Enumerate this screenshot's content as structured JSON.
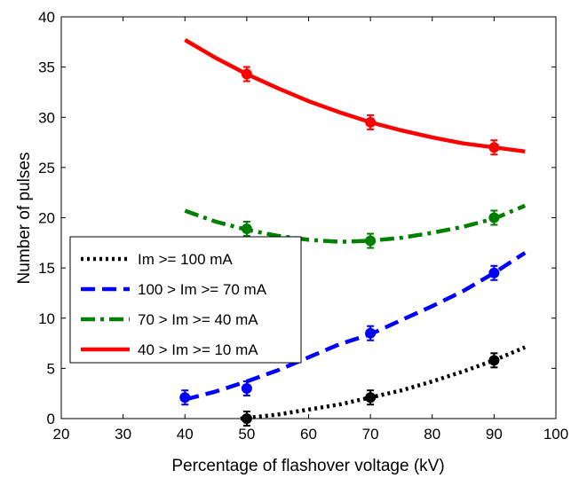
{
  "chart_data": {
    "type": "line",
    "title": "",
    "xlabel": "Percentage of flashover voltage (kV)",
    "ylabel": "Number of pulses",
    "xlim": [
      20,
      100
    ],
    "ylim": [
      0,
      40
    ],
    "xticks": [
      20,
      30,
      40,
      50,
      60,
      70,
      80,
      90,
      100
    ],
    "yticks": [
      0,
      5,
      10,
      15,
      20,
      25,
      30,
      35,
      40
    ],
    "grid": false,
    "legend_position": "center-left",
    "series": [
      {
        "name": "Im >= 100 mA",
        "color": "#000000",
        "line_style": "dotted",
        "points": [
          {
            "x": 50,
            "y": 0.0
          },
          {
            "x": 70,
            "y": 2.1
          },
          {
            "x": 90,
            "y": 5.8
          }
        ],
        "fit": [
          [
            49,
            0.0
          ],
          [
            55,
            0.4
          ],
          [
            60,
            0.9
          ],
          [
            65,
            1.4
          ],
          [
            70,
            2.1
          ],
          [
            75,
            2.8
          ],
          [
            80,
            3.7
          ],
          [
            85,
            4.7
          ],
          [
            90,
            5.8
          ],
          [
            95,
            7.1
          ]
        ]
      },
      {
        "name": "100 > Im >= 70 mA",
        "color": "#0000ff",
        "line_style": "dashed",
        "points": [
          {
            "x": 40,
            "y": 2.1
          },
          {
            "x": 50,
            "y": 3.0
          },
          {
            "x": 70,
            "y": 8.5
          },
          {
            "x": 90,
            "y": 14.5
          }
        ],
        "fit": [
          [
            40,
            1.9
          ],
          [
            45,
            2.7
          ],
          [
            50,
            3.7
          ],
          [
            55,
            4.8
          ],
          [
            60,
            6.1
          ],
          [
            65,
            7.4
          ],
          [
            70,
            8.4
          ],
          [
            75,
            9.8
          ],
          [
            80,
            11.2
          ],
          [
            85,
            12.7
          ],
          [
            90,
            14.5
          ],
          [
            95,
            16.5
          ]
        ]
      },
      {
        "name": "70 > Im >= 40 mA",
        "color": "#007f00",
        "line_style": "dashdot",
        "points": [
          {
            "x": 50,
            "y": 18.9
          },
          {
            "x": 70,
            "y": 17.7
          },
          {
            "x": 90,
            "y": 20.0
          }
        ],
        "fit": [
          [
            40,
            20.7
          ],
          [
            45,
            19.6
          ],
          [
            50,
            18.8
          ],
          [
            55,
            18.2
          ],
          [
            60,
            17.8
          ],
          [
            65,
            17.6
          ],
          [
            70,
            17.7
          ],
          [
            75,
            18.0
          ],
          [
            80,
            18.5
          ],
          [
            85,
            19.1
          ],
          [
            90,
            19.9
          ],
          [
            95,
            21.2
          ]
        ]
      },
      {
        "name": "40 > Im >= 10 mA",
        "color": "#ff0000",
        "line_style": "solid",
        "points": [
          {
            "x": 50,
            "y": 34.3
          },
          {
            "x": 70,
            "y": 29.5
          },
          {
            "x": 90,
            "y": 27.0
          }
        ],
        "fit": [
          [
            40,
            37.7
          ],
          [
            45,
            35.9
          ],
          [
            50,
            34.3
          ],
          [
            55,
            32.9
          ],
          [
            60,
            31.6
          ],
          [
            65,
            30.5
          ],
          [
            70,
            29.5
          ],
          [
            75,
            28.7
          ],
          [
            80,
            28.0
          ],
          [
            85,
            27.4
          ],
          [
            90,
            27.0
          ],
          [
            95,
            26.6
          ]
        ]
      }
    ]
  }
}
